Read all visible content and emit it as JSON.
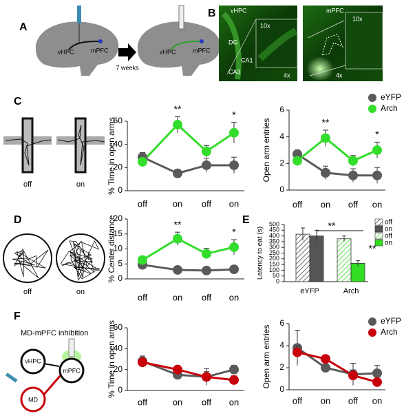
{
  "panels": {
    "labels": [
      "A",
      "B",
      "C",
      "D",
      "E",
      "F"
    ]
  },
  "diagram_a": {
    "left_labels": [
      "vHPC",
      "mPFC"
    ],
    "arrow_label": "7 weeks",
    "right_labels": [
      "vHPC",
      "mPFC"
    ]
  },
  "histology_b": {
    "left": {
      "region": "vHPC",
      "zoom": "10x",
      "areas": [
        "DG",
        "CA1",
        "CA3"
      ],
      "magnification": "4x"
    },
    "right": {
      "region": "mPFC",
      "zoom": "10x",
      "magnification": "4x"
    }
  },
  "maze_c": {
    "labels": [
      "off",
      "on"
    ]
  },
  "tracks_d": {
    "labels": [
      "off",
      "on"
    ]
  },
  "circuit_f": {
    "title": "MD-mPFC inhibition",
    "nodes": [
      "vHPC",
      "mPFC",
      "MD"
    ]
  },
  "chart_data": [
    {
      "type": "line",
      "ylabel": "% Time in open arms",
      "categories": [
        "off",
        "on",
        "off",
        "on"
      ],
      "ylim": [
        0,
        60
      ],
      "yticks": [
        0,
        20,
        40,
        60
      ],
      "series": [
        {
          "color": "#5a5a5a",
          "values": [
            29,
            15,
            22,
            22
          ],
          "errors": [
            4,
            2,
            6,
            7
          ]
        },
        {
          "color": "#33dd2b",
          "values": [
            25,
            57,
            34,
            50
          ],
          "errors": [
            3,
            7,
            5,
            9
          ]
        }
      ],
      "significance": [
        null,
        "**",
        null,
        "*"
      ]
    },
    {
      "type": "line",
      "ylabel": "Open arm entries",
      "categories": [
        "off",
        "on",
        "off",
        "on"
      ],
      "ylim": [
        0,
        6
      ],
      "yticks": [
        0,
        2,
        4,
        6
      ],
      "series": [
        {
          "name": "eYFP",
          "color": "#5a5a5a",
          "values": [
            2.7,
            1.3,
            1.1,
            1.1
          ],
          "errors": [
            0.3,
            0.5,
            0.5,
            0.6
          ]
        },
        {
          "name": "Arch",
          "color": "#33dd2b",
          "values": [
            2.2,
            3.9,
            2.2,
            3.0
          ],
          "errors": [
            0.3,
            0.6,
            0.4,
            0.6
          ]
        }
      ],
      "significance": [
        null,
        "**",
        null,
        "*"
      ],
      "legend": "top-right"
    },
    {
      "type": "line",
      "ylabel": "% Center distance",
      "categories": [
        "off",
        "on",
        "off",
        "on"
      ],
      "ylim": [
        0,
        20
      ],
      "yticks": [
        0,
        5,
        10,
        15,
        20
      ],
      "series": [
        {
          "color": "#5a5a5a",
          "values": [
            4.7,
            3.0,
            2.8,
            3.2
          ],
          "errors": [
            1.2,
            0.5,
            0.5,
            0.7
          ]
        },
        {
          "color": "#33dd2b",
          "values": [
            6.3,
            13.4,
            8.4,
            10.6
          ],
          "errors": [
            1.0,
            2.2,
            1.8,
            2.5
          ]
        }
      ],
      "significance": [
        null,
        "**",
        null,
        "*"
      ]
    },
    {
      "type": "bar",
      "ylabel": "Latency to eat (s)",
      "categories": [
        "eYFP",
        "Arch"
      ],
      "ylim": [
        0,
        500
      ],
      "yticks": [
        0,
        50,
        100,
        150,
        200,
        250,
        300,
        350,
        400,
        450,
        500
      ],
      "series": [
        {
          "name": "off",
          "color": "#444444",
          "pattern": "hatch",
          "values": [
            415,
            null
          ],
          "errors": [
            55,
            null
          ]
        },
        {
          "name": "on",
          "color": "#555555",
          "pattern": "solid",
          "values": [
            400,
            null
          ],
          "errors": [
            50,
            null
          ]
        },
        {
          "name": "off",
          "color": "#33dd22",
          "pattern": "hatch",
          "values": [
            null,
            375
          ],
          "errors": [
            null,
            25
          ]
        },
        {
          "name": "on",
          "color": "#33dd22",
          "pattern": "solid",
          "values": [
            null,
            160
          ],
          "errors": [
            null,
            25
          ]
        }
      ],
      "annotations": [
        "**",
        "**"
      ],
      "legend": "right"
    },
    {
      "type": "line",
      "ylabel": "% Time in open arms",
      "categories": [
        "off",
        "on",
        "off",
        "on"
      ],
      "ylim": [
        0,
        60
      ],
      "yticks": [
        0,
        20,
        40,
        60
      ],
      "series": [
        {
          "color": "#5a5a5a",
          "values": [
            28,
            15,
            13,
            20
          ],
          "errors": [
            5,
            3,
            8,
            4
          ]
        },
        {
          "color": "#c8000a",
          "values": [
            27,
            20,
            13,
            10
          ],
          "errors": [
            4,
            3,
            5,
            4
          ]
        }
      ]
    },
    {
      "type": "line",
      "ylabel": "Open arm entries",
      "categories": [
        "off",
        "on",
        "off",
        "on"
      ],
      "ylim": [
        0,
        6
      ],
      "yticks": [
        0,
        2,
        4,
        6
      ],
      "series": [
        {
          "name": "eYFP",
          "color": "#5a5a5a",
          "values": [
            3.8,
            2.0,
            1.4,
            1.5
          ],
          "errors": [
            1.6,
            0.3,
            1.0,
            0.7
          ]
        },
        {
          "name": "Arch",
          "color": "#c8000a",
          "values": [
            3.4,
            2.8,
            1.3,
            0.7
          ],
          "errors": [
            0.6,
            0.3,
            0.5,
            0.3
          ]
        }
      ],
      "legend": "top-right"
    }
  ]
}
